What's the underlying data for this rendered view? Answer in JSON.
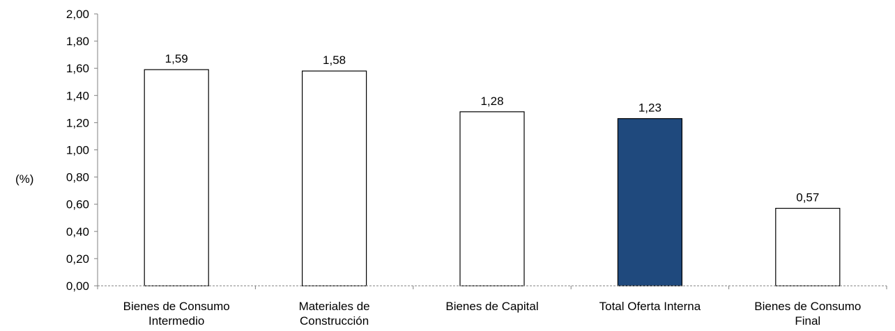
{
  "chart_data": {
    "type": "bar",
    "categories": [
      [
        "Bienes de Consumo",
        "Intermedio"
      ],
      [
        "Materiales de",
        "Construcción"
      ],
      [
        "Bienes de Capital"
      ],
      [
        "Total Oferta Interna"
      ],
      [
        "Bienes de Consumo",
        "Final"
      ]
    ],
    "values": [
      1.59,
      1.58,
      1.28,
      1.23,
      0.57
    ],
    "data_labels": [
      "1,59",
      "1,58",
      "1,28",
      "1,23",
      "0,57"
    ],
    "highlight_index": 3,
    "ylabel": "(%)",
    "ylim": [
      0,
      2
    ],
    "yticks": [
      0,
      0.2,
      0.4,
      0.6,
      0.8,
      1.0,
      1.2,
      1.4,
      1.6,
      1.8,
      2.0
    ],
    "ytick_labels": [
      "0,00",
      "0,20",
      "0,40",
      "0,60",
      "0,80",
      "1,00",
      "1,20",
      "1,40",
      "1,60",
      "1,80",
      "2,00"
    ],
    "grid": false,
    "legend": "none",
    "colors": {
      "bar_fill": "#ffffff",
      "bar_highlight": "#1f497d",
      "bar_stroke": "#000000",
      "axis": "#808080"
    }
  }
}
